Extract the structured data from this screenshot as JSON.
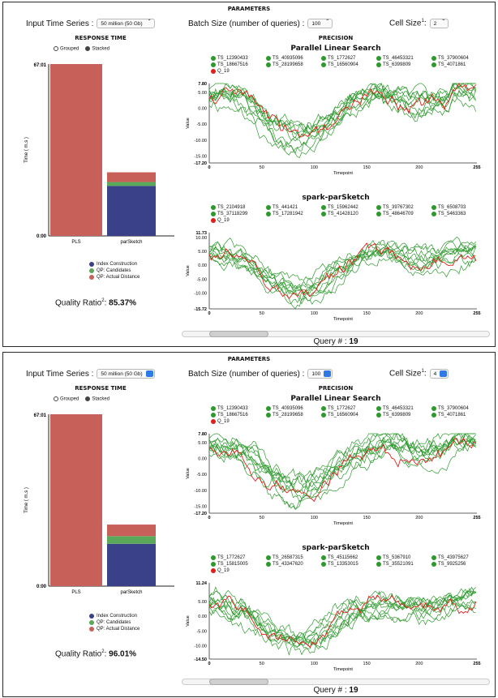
{
  "labels": {
    "parameters": "PARAMETERS",
    "input_time_series": "Input Time Series :",
    "batch_size": "Batch Size (number of queries) :",
    "cell_size": "Cell Size",
    "cell_size_sup": "1",
    "cell_size_colon": ":",
    "response_time": "RESPONSE TIME",
    "precision": "PRECISION",
    "grouped": "Grouped",
    "stacked": "Stacked",
    "pls_title": "Parallel Linear Search",
    "spark_title": "spark-parSketch",
    "value_axis": "Value",
    "timepoint_axis": "Timepoint",
    "time_axis": "Time ( m.s )",
    "quality_ratio": "Quality Ratio",
    "quality_ratio_sup": "2",
    "quality_ratio_colon": ":",
    "query": "Query # :",
    "legend_index": "Index Construction",
    "legend_candidates": "QP: Candidates",
    "legend_distance": "QP: Actual Distance"
  },
  "colors": {
    "pls_bar": "#c8605a",
    "index": "#3a4189",
    "candidates": "#5aa85a",
    "distance": "#c8605a",
    "green_line": "#2e9a2e",
    "red_line": "#e0201c"
  },
  "panels": [
    {
      "input_series": "50 million (50 Gb)",
      "batch_size": "100",
      "cell_size": "2",
      "quality_ratio": "85.37%",
      "query_num": "19",
      "slider_fraction": 0.14,
      "chart_data": {
        "type": "bar",
        "y_ticks": [
          "67:01",
          "0:00"
        ],
        "categories": [
          "PLS",
          "parSketch"
        ],
        "pls": {
          "distance": 67.01
        },
        "parsketch": {
          "index": 19.5,
          "candidates": 1.5,
          "distance": 3.8
        }
      },
      "pls_legend": [
        "TS_12390433",
        "TS_40935096",
        "TS_1772627",
        "TS_46453321",
        "TS_37900604",
        "TS_18667516",
        "TS_28199658",
        "TS_16560904",
        "TS_6399809",
        "TS_4071861",
        "Q_19"
      ],
      "pls_y_ticks": [
        "7.80",
        "5.00",
        "0.00",
        "-5.00",
        "-10.00",
        "-15.00",
        "-17.20"
      ],
      "pls_ylim": [
        -17.2,
        7.8
      ],
      "spark_legend": [
        "TS_2104918",
        "TS_441421",
        "TS_15962442",
        "TS_39767302",
        "TS_6508703",
        "TS_37118299",
        "TS_17281942",
        "TS_41428120",
        "TS_48646709",
        "TS_5463363",
        "Q_19"
      ],
      "spark_y_ticks": [
        "11.73",
        "10.00",
        "5.00",
        "0.00",
        "-5.00",
        "-10.00",
        "-15.72"
      ],
      "spark_ylim": [
        -15.72,
        11.73
      ],
      "x_ticks": [
        "0",
        "50",
        "100",
        "150",
        "200",
        "255"
      ]
    },
    {
      "input_series": "50 million (50 Gb)",
      "batch_size": "100",
      "cell_size": "4",
      "quality_ratio": "96.01%",
      "query_num": "19",
      "slider_fraction": 0.14,
      "chart_data": {
        "type": "bar",
        "y_ticks": [
          "67:01",
          "0:00"
        ],
        "categories": [
          "PLS",
          "parSketch"
        ],
        "pls": {
          "distance": 67.01
        },
        "parsketch": {
          "index": 16.5,
          "candidates": 3.0,
          "distance": 4.5
        }
      },
      "pls_legend": [
        "TS_12390433",
        "TS_40935096",
        "TS_1772627",
        "TS_46453321",
        "TS_37900604",
        "TS_18667516",
        "TS_28199658",
        "TS_16560904",
        "TS_6399809",
        "TS_4071861",
        "Q_19"
      ],
      "pls_y_ticks": [
        "7.80",
        "5.00",
        "0.00",
        "-5.00",
        "-10.00",
        "-15.00",
        "-17.20"
      ],
      "pls_ylim": [
        -17.2,
        7.8
      ],
      "spark_legend": [
        "TS_1772627",
        "TS_26587315",
        "TS_45115662",
        "TS_5367910",
        "TS_43975627",
        "TS_15815005",
        "TS_43347620",
        "TS_13353015",
        "TS_35521091",
        "TS_9925256",
        "Q_19"
      ],
      "spark_y_ticks": [
        "11.24",
        "5.00",
        "0.00",
        "-5.00",
        "-10.00",
        "-14.50"
      ],
      "spark_ylim": [
        -14.5,
        11.24
      ],
      "x_ticks": [
        "0",
        "50",
        "100",
        "150",
        "200",
        "255"
      ]
    }
  ]
}
